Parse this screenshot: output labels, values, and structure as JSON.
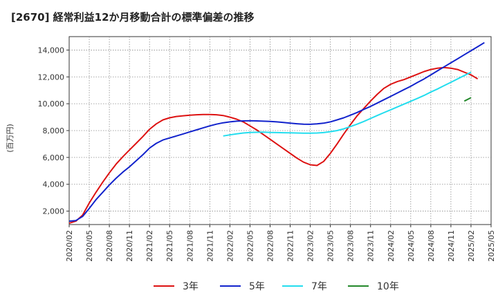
{
  "chart_data": {
    "type": "line",
    "title": "[2670]  経常利益12か月移動合計の標準偏差の推移",
    "ylabel": "(百万円)",
    "xlabel": "",
    "ylim": [
      1000,
      15000
    ],
    "yticks": [
      2000,
      4000,
      6000,
      8000,
      10000,
      12000,
      14000
    ],
    "ytick_labels": [
      "2,000",
      "4,000",
      "6,000",
      "8,000",
      "10,000",
      "12,000",
      "14,000"
    ],
    "x_start": "2020-02",
    "x_end": "2025-05",
    "xtick_labels": [
      "2020/02",
      "2020/05",
      "2020/08",
      "2020/11",
      "2021/02",
      "2021/05",
      "2021/08",
      "2021/11",
      "2022/02",
      "2022/05",
      "2022/08",
      "2022/11",
      "2023/02",
      "2023/05",
      "2023/08",
      "2023/11",
      "2024/02",
      "2024/05",
      "2024/08",
      "2024/11",
      "2025/02",
      "2025/05"
    ],
    "grid": true,
    "legend_position": "bottom",
    "series": [
      {
        "name": "3年",
        "color": "#dd1111",
        "start": "2020-02",
        "values": [
          1100,
          1250,
          1700,
          2600,
          3400,
          4150,
          4850,
          5500,
          6050,
          6550,
          7050,
          7550,
          8100,
          8500,
          8800,
          8950,
          9050,
          9100,
          9150,
          9180,
          9200,
          9200,
          9180,
          9120,
          9000,
          8850,
          8650,
          8350,
          8050,
          7700,
          7350,
          7000,
          6650,
          6300,
          5950,
          5650,
          5450,
          5400,
          5700,
          6300,
          7000,
          7750,
          8450,
          9100,
          9650,
          10200,
          10700,
          11150,
          11450,
          11650,
          11800,
          12000,
          12200,
          12400,
          12550,
          12650,
          12700,
          12650,
          12550,
          12350,
          12150,
          11850
        ]
      },
      {
        "name": "5年",
        "color": "#1122cc",
        "start": "2020-02",
        "values": [
          1250,
          1300,
          1600,
          2200,
          2850,
          3400,
          3950,
          4450,
          4900,
          5300,
          5750,
          6200,
          6700,
          7050,
          7300,
          7450,
          7600,
          7750,
          7900,
          8050,
          8200,
          8350,
          8480,
          8580,
          8650,
          8700,
          8720,
          8730,
          8720,
          8700,
          8680,
          8650,
          8600,
          8550,
          8510,
          8480,
          8470,
          8500,
          8550,
          8650,
          8800,
          8950,
          9150,
          9350,
          9580,
          9800,
          10050,
          10300,
          10550,
          10800,
          11050,
          11300,
          11580,
          11850,
          12150,
          12450,
          12750,
          13050,
          13350,
          13650,
          13950,
          14250,
          14550
        ]
      },
      {
        "name": "7年",
        "color": "#22ddee",
        "start": "2022-01",
        "values": [
          7600,
          7680,
          7760,
          7820,
          7860,
          7870,
          7880,
          7860,
          7850,
          7840,
          7830,
          7820,
          7810,
          7810,
          7820,
          7850,
          7920,
          8000,
          8130,
          8300,
          8480,
          8680,
          8900,
          9120,
          9340,
          9550,
          9760,
          9970,
          10180,
          10400,
          10620,
          10870,
          11100,
          11350,
          11600,
          11850,
          12100,
          12350
        ]
      },
      {
        "name": "10年",
        "color": "#22882a",
        "start": "2025-01",
        "values": [
          10200,
          10450
        ]
      }
    ]
  }
}
